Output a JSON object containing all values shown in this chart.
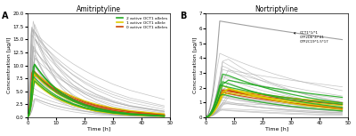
{
  "title_A": "Amitriptyline",
  "title_B": "Nortriptyline",
  "xlabel": "Time [h]",
  "ylabel": "Concentration [µg/l]",
  "label_A": "A",
  "label_B": "B",
  "xmax": 50,
  "color_2active": "#22aa22",
  "color_1active": "#ddcc00",
  "color_0active": "#cc4400",
  "color_gray": "#aaaaaa",
  "legend_labels": [
    "2 active OCT1 alleles",
    "1 active OCT1 allele",
    "0 active OCT1 alleles"
  ],
  "annotation_B": "OCT1*1/*1\nCYP2D6*4/*41\nCYP2C19*1.5*17",
  "ylim_A": [
    0,
    20
  ],
  "ylim_B": [
    0,
    7
  ]
}
